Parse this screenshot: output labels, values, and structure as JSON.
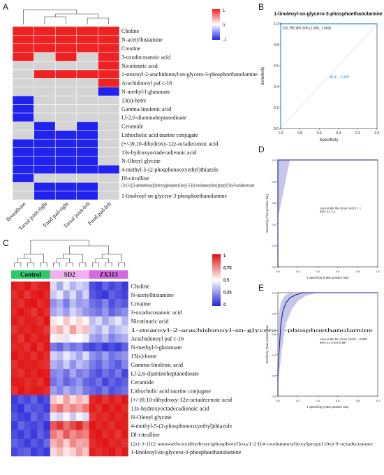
{
  "metabolites": [
    "Choline",
    "N-acetylhistamine",
    "Creatine",
    "3-oxodocosanoic acid",
    "Nicotinuric acid",
    "1-stearoyl-2-arachidonoyl-sn-glycero-3-phosphoethanolamine",
    "Arachidonoyl paf c-16",
    "N-methyl-l-glutamate",
    "13(s)-hotre",
    "Gamma-linolenic acid",
    "Ll-2,6-diaminoheptanedioate",
    "Ceramide",
    "Lithocholic acid taurine conjugate",
    "(+/-)9,10-dihydroxy-12z-octadecenoic acid",
    "13s-hydroxyoctadecadienoic acid",
    "N-Oleoyl glycine",
    "4-methyl-5-(2-phosphonooxyethyl)thiazole",
    "Dl-citrulline",
    "(2r)-3-{[(2-aminoethoxy)(hydroxy)phosphoryl]oxy}-2-[(4-oxobutanoyl)oxy]propyl (9z)-9-octadecenoate",
    "1-linoleoyl-sn-glycero-3-phosphoethanolamine"
  ],
  "panel_a": {
    "label": "A",
    "columns": [
      "Breastbone",
      "Tarsal joint-right",
      "Food pad-right",
      "Tarsal joint-left",
      "Food pad-left"
    ],
    "colorbar_ticks": [
      "1",
      "0",
      "-1"
    ],
    "colors": {
      "positive": "#ee2222",
      "neutral": "#d4d4d4",
      "negative": "#2222ee"
    },
    "chart_data": {
      "type": "heatmap",
      "rows": "metabolites",
      "values": [
        [
          1,
          1,
          1,
          1,
          1
        ],
        [
          1,
          1,
          1,
          1,
          1
        ],
        [
          1,
          1,
          1,
          1,
          1
        ],
        [
          1,
          0,
          1,
          0,
          1
        ],
        [
          0,
          0,
          0,
          0,
          1
        ],
        [
          0,
          1,
          1,
          1,
          1
        ],
        [
          0,
          0,
          0,
          0,
          1
        ],
        [
          0,
          0,
          0,
          0,
          -1
        ],
        [
          -1,
          0,
          0,
          0,
          0
        ],
        [
          -1,
          0,
          0,
          0,
          0
        ],
        [
          -1,
          0,
          0,
          0,
          0
        ],
        [
          0,
          -1,
          0,
          -1,
          0
        ],
        [
          0,
          -1,
          -1,
          -1,
          0
        ],
        [
          -1,
          -1,
          -1,
          -1,
          0
        ],
        [
          -1,
          -1,
          -1,
          -1,
          0
        ],
        [
          -1,
          -1,
          -1,
          -1,
          0
        ],
        [
          -1,
          -1,
          -1,
          -1,
          -1
        ],
        [
          -1,
          0,
          0,
          0,
          0
        ],
        [
          0,
          -1,
          -1,
          -1,
          0
        ],
        [
          0,
          -1,
          -1,
          -1,
          0
        ]
      ],
      "color_range": [
        -1,
        1
      ]
    }
  },
  "panel_b": {
    "label": "B",
    "title": "1-linoleoyl-sn-glycero-3-phosphoethanolamine",
    "xlabel": "Specificity",
    "ylabel": "Sensitivity",
    "point_label": "132,755,987.605 (1.000, 1.000)",
    "auc_label": "AUC: 1.000",
    "chart_data": {
      "type": "line",
      "x": [
        1.0,
        1.0,
        0.0
      ],
      "y": [
        0.0,
        1.0,
        1.0
      ],
      "xlim": [
        1.0,
        0.0
      ],
      "ylim": [
        0.0,
        1.0
      ],
      "xticks": [
        "1.0",
        "0.8",
        "0.6",
        "0.4",
        "0.2",
        "0.0"
      ],
      "yticks": [
        "0.0",
        "0.2",
        "0.4",
        "0.6",
        "0.8",
        "1.0"
      ]
    },
    "color": "#2c8fd6"
  },
  "panel_c": {
    "label": "C",
    "groups": [
      "Control",
      "SD2",
      "ZX313"
    ],
    "group_colors": [
      "#2ec96b",
      "#f3aef0",
      "#d36be0"
    ],
    "colorbar_ticks": [
      "1",
      "0.75",
      "0.5",
      "0.25",
      "0"
    ],
    "chart_data": {
      "type": "heatmap",
      "rows": "metabolites",
      "columns_per_group": 6,
      "color_range": [
        0,
        1
      ],
      "values": [
        [
          0.97,
          0.95,
          0.99,
          0.93,
          0.96,
          0.98,
          0.42,
          0.3,
          0.45,
          0.33,
          0.4,
          0.36,
          0.1,
          0.06,
          0.15,
          0.08,
          0.12,
          0.05
        ],
        [
          0.94,
          0.98,
          0.92,
          0.97,
          0.99,
          0.95,
          0.38,
          0.45,
          0.3,
          0.42,
          0.28,
          0.4,
          0.12,
          0.08,
          0.05,
          0.14,
          0.1,
          0.07
        ],
        [
          0.96,
          0.93,
          0.98,
          0.99,
          0.94,
          0.97,
          0.25,
          0.32,
          0.2,
          0.35,
          0.27,
          0.3,
          0.18,
          0.14,
          0.22,
          0.1,
          0.16,
          0.12
        ],
        [
          0.95,
          0.99,
          0.96,
          0.92,
          0.98,
          0.94,
          0.3,
          0.36,
          0.28,
          0.4,
          0.33,
          0.26,
          0.22,
          0.18,
          0.26,
          0.15,
          0.2,
          0.24
        ],
        [
          0.98,
          0.94,
          0.97,
          0.96,
          0.93,
          0.99,
          0.55,
          0.5,
          0.62,
          0.48,
          0.58,
          0.52,
          0.35,
          0.42,
          0.3,
          0.38,
          0.45,
          0.33
        ],
        [
          0.93,
          0.97,
          0.95,
          0.98,
          0.96,
          0.92,
          0.6,
          0.66,
          0.55,
          0.7,
          0.58,
          0.63,
          0.38,
          0.32,
          0.42,
          0.3,
          0.36,
          0.4
        ],
        [
          0.97,
          0.92,
          0.99,
          0.94,
          0.97,
          0.96,
          0.48,
          0.55,
          0.44,
          0.52,
          0.5,
          0.46,
          0.3,
          0.26,
          0.34,
          0.22,
          0.28,
          0.32
        ],
        [
          0.95,
          0.96,
          0.93,
          0.99,
          0.92,
          0.98,
          0.2,
          0.15,
          0.25,
          0.18,
          0.22,
          0.12,
          0.08,
          0.12,
          0.05,
          0.1,
          0.06,
          0.14
        ],
        [
          0.99,
          0.95,
          0.97,
          0.93,
          0.98,
          0.94,
          0.4,
          0.35,
          0.45,
          0.38,
          0.3,
          0.42,
          0.25,
          0.2,
          0.28,
          0.18,
          0.22,
          0.26
        ],
        [
          0.94,
          0.98,
          0.96,
          0.97,
          0.95,
          0.93,
          0.32,
          0.28,
          0.38,
          0.25,
          0.35,
          0.3,
          0.2,
          0.15,
          0.24,
          0.18,
          0.12,
          0.22
        ],
        [
          0.96,
          0.93,
          0.98,
          0.95,
          0.99,
          0.97,
          0.22,
          0.26,
          0.18,
          0.3,
          0.2,
          0.24,
          0.15,
          0.1,
          0.18,
          0.12,
          0.2,
          0.08
        ],
        [
          0.98,
          0.97,
          0.94,
          0.96,
          0.93,
          0.99,
          0.18,
          0.24,
          0.15,
          0.2,
          0.26,
          0.16,
          0.12,
          0.18,
          0.08,
          0.15,
          0.1,
          0.14
        ],
        [
          0.93,
          0.99,
          0.95,
          0.98,
          0.97,
          0.94,
          0.28,
          0.22,
          0.32,
          0.25,
          0.3,
          0.2,
          0.16,
          0.12,
          0.2,
          0.1,
          0.14,
          0.18
        ],
        [
          0.05,
          0.12,
          0.08,
          0.15,
          0.06,
          0.1,
          0.62,
          0.55,
          0.7,
          0.58,
          0.66,
          0.6,
          0.95,
          0.98,
          0.92,
          0.97,
          0.94,
          0.99
        ],
        [
          0.08,
          0.04,
          0.14,
          0.1,
          0.12,
          0.06,
          0.72,
          0.8,
          0.68,
          0.75,
          0.7,
          0.78,
          0.97,
          0.93,
          0.99,
          0.95,
          0.98,
          0.94
        ],
        [
          0.12,
          0.08,
          0.05,
          0.16,
          0.1,
          0.14,
          0.45,
          0.4,
          0.52,
          0.38,
          0.48,
          0.42,
          0.92,
          0.96,
          0.94,
          0.98,
          0.95,
          0.97
        ],
        [
          0.06,
          0.15,
          0.1,
          0.08,
          0.12,
          0.04,
          0.85,
          0.92,
          0.8,
          0.88,
          0.95,
          0.82,
          0.99,
          0.95,
          0.97,
          0.93,
          0.98,
          0.96
        ],
        [
          0.1,
          0.06,
          0.12,
          0.05,
          0.14,
          0.08,
          0.78,
          0.7,
          0.85,
          0.74,
          0.8,
          0.76,
          0.96,
          0.99,
          0.94,
          0.97,
          0.92,
          0.98
        ],
        [
          0.14,
          0.1,
          0.06,
          0.12,
          0.08,
          0.16,
          0.66,
          0.72,
          0.6,
          0.75,
          0.68,
          0.7,
          0.94,
          0.97,
          0.99,
          0.95,
          0.96,
          0.93
        ],
        [
          0.08,
          0.12,
          0.15,
          0.06,
          0.1,
          0.05,
          0.58,
          0.64,
          0.55,
          0.6,
          0.7,
          0.62,
          0.97,
          0.94,
          0.96,
          0.99,
          0.93,
          0.98
        ]
      ]
    }
  },
  "panel_d": {
    "label": "D",
    "xlabel": "1-Specificity (False positive rate)",
    "ylabel": "Sensitivity (True positive rate)",
    "note_1": "Area under the curve (AUC) = 1",
    "note_2": "95% CI: 1-1",
    "chart_data": {
      "type": "line",
      "x": [
        0.0,
        0.0,
        0.0,
        1.0
      ],
      "y": [
        0.0,
        0.5,
        1.0,
        1.0
      ],
      "ci_upper": {
        "x": [
          0.0,
          0.0,
          1.0
        ],
        "y": [
          0.55,
          1.0,
          1.0
        ]
      },
      "ci_lower": {
        "x": [
          0.0,
          0.12,
          1.0
        ],
        "y": [
          0.45,
          1.0,
          1.0
        ]
      },
      "xlim": [
        0,
        1
      ],
      "ylim": [
        0,
        1
      ],
      "xticks": [
        "0.0",
        "0.2",
        "0.4",
        "0.6",
        "0.8",
        "1.0"
      ],
      "yticks": [
        "0.0",
        "0.2",
        "0.4",
        "0.6",
        "0.8",
        "1.0"
      ]
    },
    "line_color": "#1e1e8c",
    "band_color": "#c6c6ea"
  },
  "panel_e": {
    "label": "E",
    "xlabel": "1-Specificity (False positive rate)",
    "ylabel": "Sensitivity (True positive rate)",
    "note_1": "Area under the curve (AUC) = 0.986",
    "note_2": "95% CI: 0.972-0.997",
    "chart_data": {
      "type": "line",
      "x": [
        0.0,
        0.0,
        0.02,
        0.03,
        0.05,
        0.08,
        0.12,
        0.18,
        0.25,
        0.4,
        1.0
      ],
      "y": [
        0.0,
        0.25,
        0.55,
        0.7,
        0.82,
        0.9,
        0.95,
        0.98,
        1.0,
        1.0,
        1.0
      ],
      "ci_upper": {
        "x": [
          0.0,
          0.01,
          0.03,
          0.06,
          0.1,
          0.15,
          0.3,
          1.0
        ],
        "y": [
          0.45,
          0.8,
          0.9,
          0.96,
          0.99,
          1.0,
          1.0,
          1.0
        ]
      },
      "ci_lower": {
        "x": [
          0.0,
          0.04,
          0.08,
          0.14,
          0.2,
          0.28,
          0.4,
          1.0
        ],
        "y": [
          0.1,
          0.45,
          0.7,
          0.84,
          0.92,
          0.97,
          1.0,
          1.0
        ]
      },
      "xlim": [
        0,
        1
      ],
      "ylim": [
        0,
        1
      ],
      "xticks": [
        "0.0",
        "0.2",
        "0.4",
        "0.6",
        "0.8",
        "1.0"
      ],
      "yticks": [
        "0.0",
        "0.2",
        "0.4",
        "0.6",
        "0.8",
        "1.0"
      ]
    },
    "line_color": "#1e1e8c",
    "band_color": "#c6c6ea"
  }
}
